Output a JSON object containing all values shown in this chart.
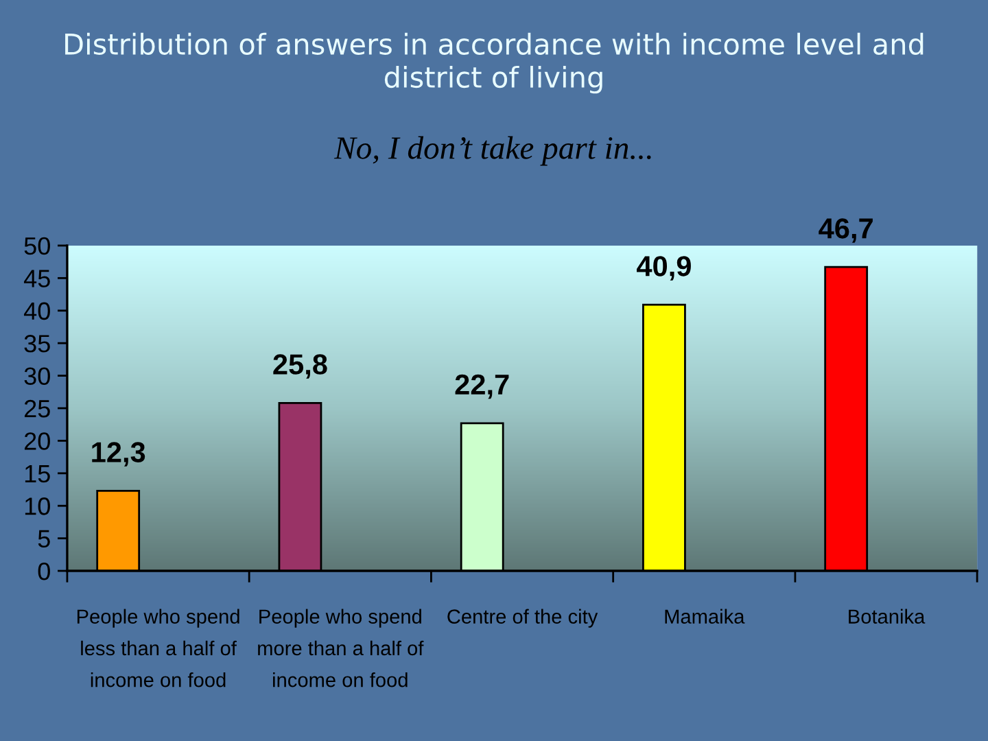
{
  "chart_data": {
    "type": "bar",
    "title": "Distribution of answers in accordance with income level and district of living",
    "subtitle": "No, I don’t take part in...",
    "categories": [
      "People who spend less than a half of income on food",
      "People who spend more than a half of income on food",
      "Centre of the city",
      "Mamaika",
      "Botanika"
    ],
    "values": [
      12.3,
      25.8,
      22.7,
      40.9,
      46.7
    ],
    "value_labels": [
      "12,3",
      "25,8",
      "22,7",
      "40,9",
      "46,7"
    ],
    "colors": [
      "#ff9900",
      "#993366",
      "#ccffcc",
      "#ffff00",
      "#ff0000"
    ],
    "ylim": [
      0,
      50
    ],
    "yticks": [
      0,
      5,
      10,
      15,
      20,
      25,
      30,
      35,
      40,
      45,
      50
    ]
  }
}
